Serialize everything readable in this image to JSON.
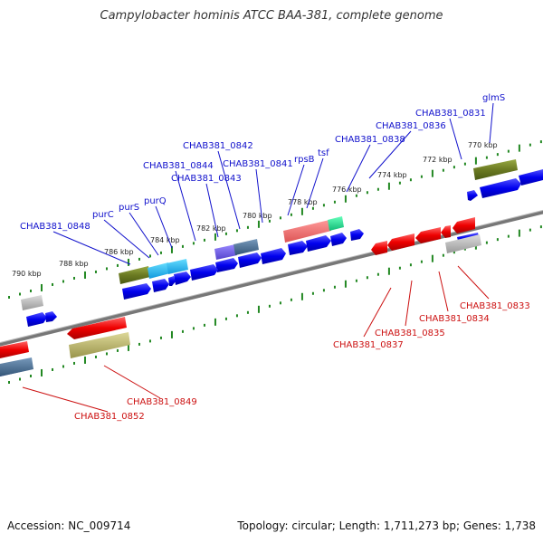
{
  "header": {
    "title": "Campylobacter hominis ATCC BAA-381, complete genome"
  },
  "footer": {
    "accession": "Accession: NC_009714",
    "summary": "Topology: circular; Length: 1,711,273 bp; Genes: 1,738"
  },
  "colors": {
    "forward_label": "#1111cc",
    "reverse_label": "#cc1111",
    "cds_forward": "#0000ee",
    "cds_reverse": "#ee0000",
    "backbone": "#888888",
    "ticks": "#228822"
  },
  "scale_labels": [
    {
      "text": "790 kbp"
    },
    {
      "text": "788 kbp"
    },
    {
      "text": "786 kbp"
    },
    {
      "text": "784 kbp"
    },
    {
      "text": "782 kbp"
    },
    {
      "text": "780 kbp"
    },
    {
      "text": "778 kbp"
    },
    {
      "text": "776 kbp"
    },
    {
      "text": "774 kbp"
    },
    {
      "text": "772 kbp"
    },
    {
      "text": "770 kbp"
    }
  ],
  "forward_labels": [
    {
      "text": "glmS"
    },
    {
      "text": "CHAB381_0831"
    },
    {
      "text": "CHAB381_0836"
    },
    {
      "text": "CHAB381_0838"
    },
    {
      "text": "tsf"
    },
    {
      "text": "rpsB"
    },
    {
      "text": "CHAB381_0842"
    },
    {
      "text": "CHAB381_0841"
    },
    {
      "text": "CHAB381_0844"
    },
    {
      "text": "CHAB381_0843"
    },
    {
      "text": "purQ"
    },
    {
      "text": "purS"
    },
    {
      "text": "purC"
    },
    {
      "text": "CHAB381_0848"
    }
  ],
  "reverse_labels": [
    {
      "text": "CHAB381_0833"
    },
    {
      "text": "CHAB381_0834"
    },
    {
      "text": "CHAB381_0835"
    },
    {
      "text": "CHAB381_0837"
    },
    {
      "text": "CHAB381_0849"
    },
    {
      "text": "CHAB381_0852"
    }
  ]
}
